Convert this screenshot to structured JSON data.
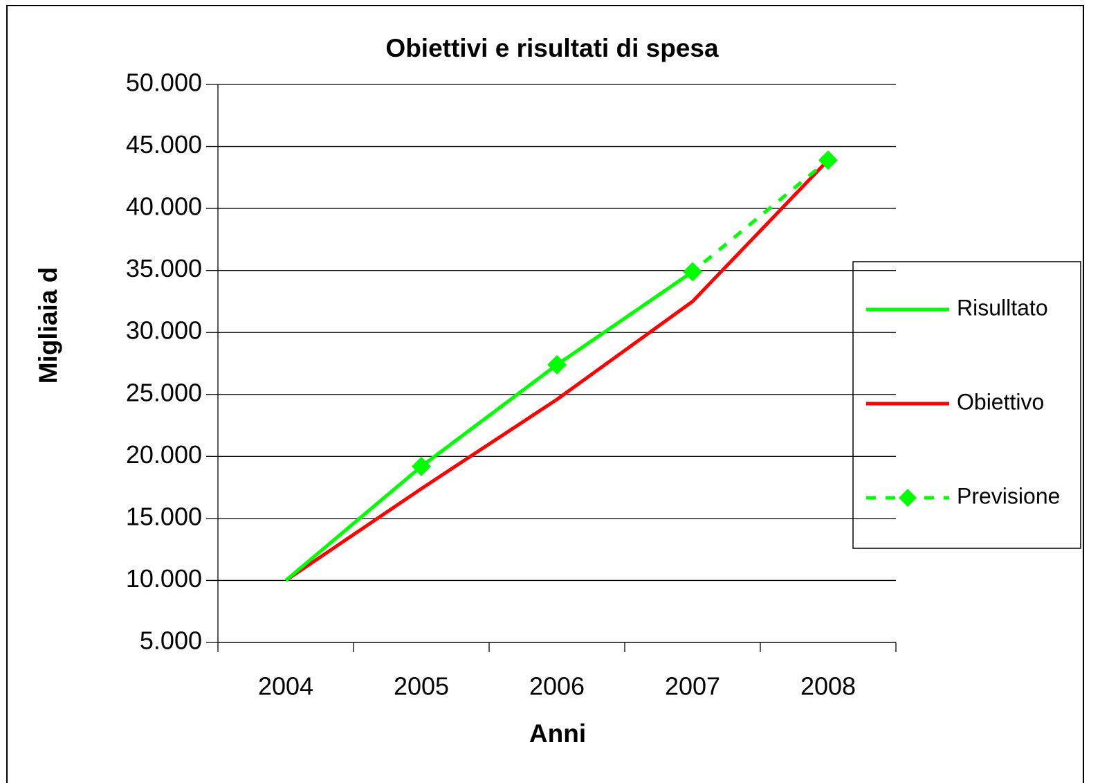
{
  "chart_data": {
    "type": "line",
    "title": "Obiettivi e risultati di spesa",
    "x_label": "Anni",
    "y_label": "Migliaia d",
    "categories": [
      "2004",
      "2005",
      "2006",
      "2007",
      "2008"
    ],
    "series": [
      {
        "name": "Risulltato",
        "color": "#00ff00",
        "dash": false,
        "marker": false,
        "values": [
          10000,
          19200,
          27400,
          34900,
          null
        ]
      },
      {
        "name": "Obiettivo",
        "color": "#ff0000",
        "dash": false,
        "marker": false,
        "values": [
          10000,
          17400,
          24600,
          32500,
          43900
        ]
      },
      {
        "name": "Previsione",
        "color": "#00ff00",
        "dash": true,
        "marker": true,
        "values": [
          null,
          19200,
          27400,
          34900,
          43900
        ]
      }
    ],
    "ylim": [
      5000,
      50000
    ],
    "yticks": [
      {
        "value": 5000,
        "label": "5.000"
      },
      {
        "value": 10000,
        "label": "10.000"
      },
      {
        "value": 15000,
        "label": "15.000"
      },
      {
        "value": 20000,
        "label": "20.000"
      },
      {
        "value": 25000,
        "label": "25.000"
      },
      {
        "value": 30000,
        "label": "30.000"
      },
      {
        "value": 35000,
        "label": "35.000"
      },
      {
        "value": 40000,
        "label": "40.000"
      },
      {
        "value": 45000,
        "label": "45.000"
      },
      {
        "value": 50000,
        "label": "50.000"
      }
    ],
    "grid": true,
    "legend": "right"
  }
}
